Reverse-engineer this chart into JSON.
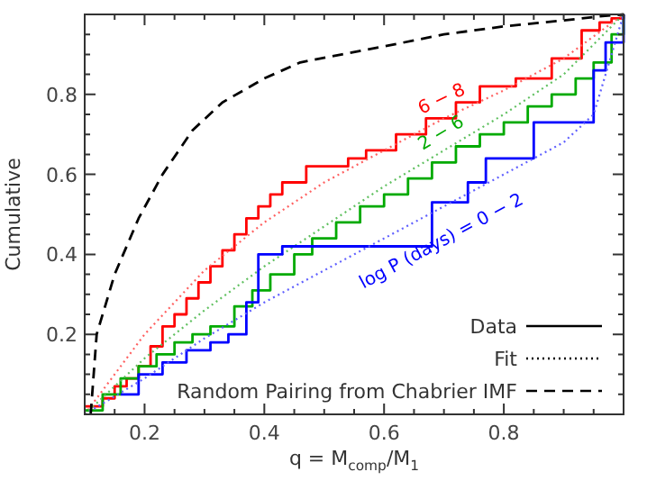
{
  "chart_data": {
    "type": "line",
    "xlabel": "q = M$_{comp}$/M$_{1}$",
    "ylabel": "Cumulative",
    "xlim": [
      0.1,
      1.0
    ],
    "ylim": [
      0,
      1.0
    ],
    "xticks": [
      {
        "value": 0.15,
        "label": null
      },
      0.2,
      {
        "value": 0.25,
        "label": null
      },
      {
        "value": 0.3,
        "label": null
      },
      {
        "value": 0.35,
        "label": null
      },
      0.4,
      {
        "value": 0.45,
        "label": null
      },
      {
        "value": 0.5,
        "label": null
      },
      {
        "value": 0.55,
        "label": null
      },
      0.6,
      {
        "value": 0.65,
        "label": null
      },
      {
        "value": 0.7,
        "label": null
      },
      {
        "value": 0.75,
        "label": null
      },
      0.8,
      {
        "value": 0.85,
        "label": null
      },
      {
        "value": 0.9,
        "label": null
      },
      {
        "value": 0.95,
        "label": null
      }
    ],
    "yticks": [
      {
        "value": 0.05,
        "label": null
      },
      {
        "value": 0.1,
        "label": null
      },
      {
        "value": 0.15,
        "label": null
      },
      0.2,
      {
        "value": 0.25,
        "label": null
      },
      {
        "value": 0.3,
        "label": null
      },
      {
        "value": 0.35,
        "label": null
      },
      0.4,
      {
        "value": 0.45,
        "label": null
      },
      {
        "value": 0.5,
        "label": null
      },
      {
        "value": 0.55,
        "label": null
      },
      0.6,
      {
        "value": 0.65,
        "label": null
      },
      {
        "value": 0.7,
        "label": null
      },
      {
        "value": 0.75,
        "label": null
      },
      0.8,
      {
        "value": 0.85,
        "label": null
      },
      {
        "value": 0.9,
        "label": null
      },
      {
        "value": 0.95,
        "label": null
      }
    ],
    "grid": false,
    "legend": "bottom right",
    "annotations": [
      "Data",
      "Fit"
    ],
    "series": [
      {
        "type": "step",
        "name": "6 − 8",
        "color": "#ff0000",
        "line_style": "solid",
        "x": [
          0.1,
          0.13,
          0.15,
          0.17,
          0.19,
          0.21,
          0.23,
          0.25,
          0.27,
          0.29,
          0.31,
          0.33,
          0.35,
          0.37,
          0.39,
          0.41,
          0.43,
          0.47,
          0.54,
          0.57,
          0.62,
          0.67,
          0.72,
          0.76,
          0.82,
          0.88,
          0.93,
          0.96,
          0.98,
          1.0
        ],
        "values": [
          0.02,
          0.04,
          0.07,
          0.09,
          0.12,
          0.17,
          0.22,
          0.25,
          0.29,
          0.33,
          0.37,
          0.41,
          0.45,
          0.49,
          0.52,
          0.55,
          0.58,
          0.62,
          0.64,
          0.66,
          0.7,
          0.74,
          0.78,
          0.82,
          0.84,
          0.89,
          0.96,
          0.98,
          0.99,
          1.0
        ]
      },
      {
        "type": "line",
        "color": "#ff6060",
        "line_style": "dotted",
        "x": [
          0.1,
          0.2,
          0.3,
          0.4,
          0.5,
          0.6,
          0.7,
          0.8,
          0.9,
          1.0
        ],
        "values": [
          0,
          0.2,
          0.36,
          0.48,
          0.58,
          0.66,
          0.74,
          0.81,
          0.89,
          1.0
        ]
      },
      {
        "type": "step",
        "name": "2 − 6",
        "color": "#00aa00",
        "line_style": "solid",
        "x": [
          0.1,
          0.13,
          0.16,
          0.19,
          0.22,
          0.25,
          0.28,
          0.31,
          0.35,
          0.38,
          0.41,
          0.45,
          0.48,
          0.52,
          0.56,
          0.6,
          0.64,
          0.68,
          0.72,
          0.76,
          0.8,
          0.84,
          0.88,
          0.92,
          0.95,
          0.98,
          1.0
        ],
        "values": [
          0.01,
          0.05,
          0.09,
          0.12,
          0.15,
          0.18,
          0.2,
          0.22,
          0.27,
          0.31,
          0.35,
          0.4,
          0.44,
          0.48,
          0.52,
          0.55,
          0.59,
          0.63,
          0.67,
          0.7,
          0.73,
          0.77,
          0.8,
          0.84,
          0.88,
          0.95,
          1.0
        ]
      },
      {
        "type": "line",
        "color": "#60c060",
        "line_style": "dotted",
        "x": [
          0.1,
          0.2,
          0.3,
          0.4,
          0.5,
          0.6,
          0.7,
          0.8,
          0.9,
          1.0
        ],
        "values": [
          0,
          0.14,
          0.26,
          0.37,
          0.47,
          0.57,
          0.66,
          0.75,
          0.85,
          1.0
        ]
      },
      {
        "type": "step",
        "name": "log P (days) = 0 − 2",
        "color": "#0000ff",
        "line_style": "solid",
        "x": [
          0.16,
          0.19,
          0.23,
          0.27,
          0.31,
          0.34,
          0.37,
          0.39,
          0.43,
          0.56,
          0.68,
          0.74,
          0.77,
          0.85,
          0.95,
          0.97,
          1.0
        ],
        "values": [
          0.05,
          0.1,
          0.13,
          0.16,
          0.18,
          0.2,
          0.28,
          0.4,
          0.42,
          0.42,
          0.53,
          0.58,
          0.64,
          0.73,
          0.86,
          0.93,
          1.0
        ]
      },
      {
        "type": "line",
        "color": "#6060ff",
        "line_style": "dotted",
        "x": [
          0.1,
          0.2,
          0.3,
          0.4,
          0.5,
          0.6,
          0.7,
          0.8,
          0.9,
          0.95,
          1.0
        ],
        "values": [
          0,
          0.09,
          0.19,
          0.28,
          0.36,
          0.44,
          0.52,
          0.6,
          0.68,
          0.75,
          1.0
        ]
      },
      {
        "type": "line",
        "name": "Random Pairing from Chabrier IMF",
        "color": "#000000",
        "line_style": "dashed",
        "x": [
          0.11,
          0.12,
          0.15,
          0.19,
          0.23,
          0.28,
          0.33,
          0.4,
          0.46,
          0.53,
          0.6,
          0.7,
          0.8,
          0.9,
          0.96,
          1.0
        ],
        "values": [
          0,
          0.2,
          0.35,
          0.49,
          0.6,
          0.71,
          0.78,
          0.84,
          0.88,
          0.9,
          0.92,
          0.95,
          0.97,
          0.985,
          0.995,
          1.0
        ]
      }
    ]
  }
}
